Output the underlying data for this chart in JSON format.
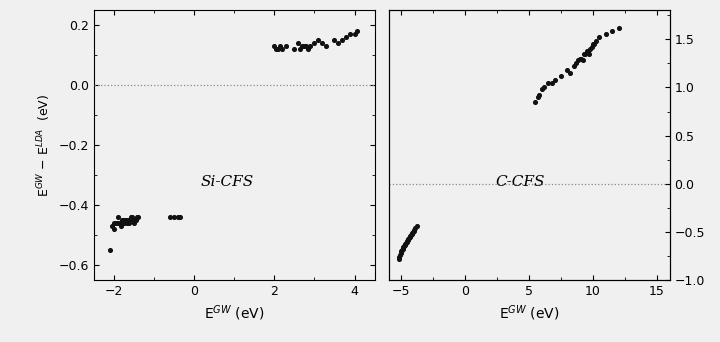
{
  "si_x": [
    -2.1,
    -2.05,
    -2.0,
    -1.98,
    -1.95,
    -1.92,
    -1.9,
    -1.88,
    -1.85,
    -1.82,
    -1.8,
    -1.78,
    -1.75,
    -1.72,
    -1.7,
    -1.68,
    -1.65,
    -1.62,
    -1.6,
    -1.58,
    -1.55,
    -1.52,
    -1.5,
    -1.48,
    -1.45,
    -1.42,
    -1.4,
    -0.6,
    -0.5,
    -0.4,
    -0.35,
    2.0,
    2.05,
    2.1,
    2.15,
    2.2,
    2.3,
    2.5,
    2.6,
    2.65,
    2.7,
    2.75,
    2.8,
    2.85,
    2.9,
    3.0,
    3.1,
    3.2,
    3.3,
    3.5,
    3.6,
    3.7,
    3.8,
    3.9,
    4.0,
    4.05
  ],
  "si_y": [
    -0.55,
    -0.47,
    -0.48,
    -0.46,
    -0.46,
    -0.46,
    -0.46,
    -0.44,
    -0.46,
    -0.47,
    -0.45,
    -0.45,
    -0.46,
    -0.45,
    -0.45,
    -0.46,
    -0.45,
    -0.46,
    -0.45,
    -0.44,
    -0.44,
    -0.45,
    -0.46,
    -0.45,
    -0.45,
    -0.44,
    -0.44,
    -0.44,
    -0.44,
    -0.44,
    -0.44,
    0.13,
    0.12,
    0.12,
    0.13,
    0.12,
    0.13,
    0.12,
    0.14,
    0.12,
    0.13,
    0.13,
    0.13,
    0.12,
    0.13,
    0.14,
    0.15,
    0.14,
    0.13,
    0.15,
    0.14,
    0.15,
    0.16,
    0.17,
    0.17,
    0.18
  ],
  "c_x": [
    -5.2,
    -5.15,
    -5.1,
    -5.05,
    -5.0,
    -4.95,
    -4.9,
    -4.85,
    -4.8,
    -4.75,
    -4.7,
    -4.65,
    -4.6,
    -4.55,
    -4.5,
    -4.45,
    -4.4,
    -4.35,
    -4.3,
    -4.25,
    -4.2,
    -4.15,
    -4.1,
    -4.05,
    -4.0,
    -3.9,
    -3.8,
    5.5,
    5.7,
    5.8,
    6.0,
    6.2,
    6.5,
    6.8,
    7.0,
    7.5,
    8.0,
    8.2,
    8.5,
    8.7,
    8.8,
    9.0,
    9.1,
    9.2,
    9.3,
    9.4,
    9.5,
    9.6,
    9.7,
    9.8,
    9.9,
    10.0,
    10.1,
    10.2,
    10.5,
    11.0,
    11.5,
    12.0
  ],
  "c_y": [
    -0.78,
    -0.76,
    -0.74,
    -0.72,
    -0.7,
    -0.68,
    -0.67,
    -0.65,
    -0.64,
    -0.63,
    -0.62,
    -0.61,
    -0.6,
    -0.59,
    -0.58,
    -0.57,
    -0.56,
    -0.55,
    -0.54,
    -0.53,
    -0.52,
    -0.51,
    -0.5,
    -0.49,
    -0.48,
    -0.46,
    -0.44,
    0.85,
    0.9,
    0.92,
    0.98,
    1.0,
    1.05,
    1.05,
    1.08,
    1.12,
    1.18,
    1.15,
    1.22,
    1.25,
    1.28,
    1.3,
    1.3,
    1.28,
    1.35,
    1.35,
    1.38,
    1.38,
    1.35,
    1.4,
    1.42,
    1.45,
    1.45,
    1.48,
    1.52,
    1.55,
    1.58,
    1.62
  ],
  "si_xlim": [
    -2.5,
    4.5
  ],
  "si_ylim": [
    -0.65,
    0.25
  ],
  "si_xticks": [
    -2,
    0,
    2,
    4
  ],
  "si_yticks": [
    -0.6,
    -0.4,
    -0.2,
    0.0,
    0.2
  ],
  "c_xlim": [
    -6,
    16
  ],
  "c_ylim": [
    -1.0,
    1.8
  ],
  "c_yticks_right": [
    -1.0,
    -0.5,
    0.0,
    0.5,
    1.0,
    1.5
  ],
  "c_xticks": [
    -5,
    0,
    5,
    10,
    15
  ],
  "dot_color": "#111111",
  "dot_size": 7,
  "label_left": "Si-CFS",
  "label_right": "C-CFS",
  "xlabel": "E$^{GW}$ (eV)",
  "ylabel_left": "E$^{GW}$ − E$^{LDA}$  (eV)",
  "bg_color": "#f0f0f0",
  "dashed_color": "#888888"
}
